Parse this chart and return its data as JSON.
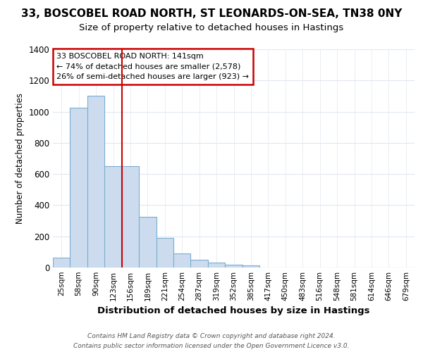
{
  "title_line1": "33, BOSCOBEL ROAD NORTH, ST LEONARDS-ON-SEA, TN38 0NY",
  "title_line2": "Size of property relative to detached houses in Hastings",
  "xlabel": "Distribution of detached houses by size in Hastings",
  "ylabel": "Number of detached properties",
  "categories": [
    "25sqm",
    "58sqm",
    "90sqm",
    "123sqm",
    "156sqm",
    "189sqm",
    "221sqm",
    "254sqm",
    "287sqm",
    "319sqm",
    "352sqm",
    "385sqm",
    "417sqm",
    "450sqm",
    "483sqm",
    "516sqm",
    "548sqm",
    "581sqm",
    "614sqm",
    "646sqm",
    "679sqm"
  ],
  "values": [
    65,
    1025,
    1100,
    650,
    650,
    325,
    190,
    90,
    48,
    30,
    20,
    12,
    0,
    0,
    0,
    0,
    0,
    0,
    0,
    0,
    0
  ],
  "bar_color": "#ccdcee",
  "bar_edge_color": "#7aaed0",
  "vline_color": "#cc0000",
  "vline_position": 3.5,
  "annotation_text": "33 BOSCOBEL ROAD NORTH: 141sqm\n← 74% of detached houses are smaller (2,578)\n26% of semi-detached houses are larger (923) →",
  "annotation_box_color": "#ffffff",
  "annotation_box_edge": "#cc0000",
  "ylim": [
    0,
    1400
  ],
  "yticks": [
    0,
    200,
    400,
    600,
    800,
    1000,
    1200,
    1400
  ],
  "footer_line1": "Contains HM Land Registry data © Crown copyright and database right 2024.",
  "footer_line2": "Contains public sector information licensed under the Open Government Licence v3.0.",
  "bg_color": "#ffffff",
  "plot_bg_color": "#ffffff",
  "grid_color": "#e0e8f0",
  "title_fontsize": 11,
  "subtitle_fontsize": 9.5
}
